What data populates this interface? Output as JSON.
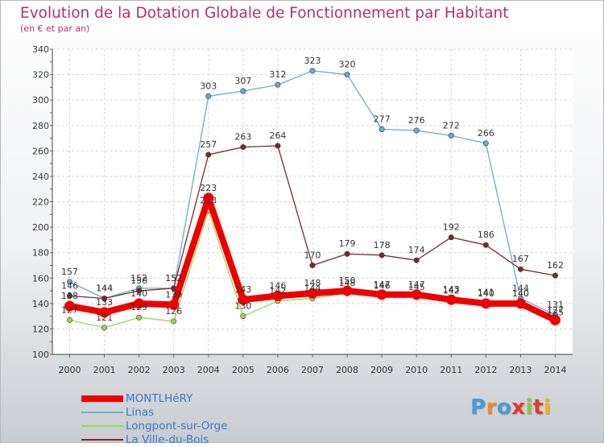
{
  "title": "Evolution de la Dotation Globale de Fonctionnement par Habitant",
  "subtitle": "(en € et par an)",
  "logo_text": "Proxiti",
  "chart_data": {
    "type": "line",
    "x": [
      "2000",
      "2001",
      "2002",
      "2003",
      "2004",
      "2005",
      "2006",
      "2007",
      "2008",
      "2009",
      "2010",
      "2011",
      "2012",
      "2013",
      "2014"
    ],
    "ylim": [
      100,
      340
    ],
    "yticks": [
      100,
      120,
      140,
      160,
      180,
      200,
      220,
      240,
      260,
      280,
      300,
      320,
      340
    ],
    "grid": true,
    "legend_position": "bottom-left",
    "series": [
      {
        "name": "MONTLHéRY",
        "color": "#ee0000",
        "values": [
          138,
          133,
          140,
          139,
          223,
          143,
          146,
          148,
          150,
          147,
          147,
          143,
          140,
          140,
          127
        ]
      },
      {
        "name": "Linas",
        "color": "#6aaad8",
        "values": [
          157,
          144,
          152,
          152,
          303,
          307,
          312,
          323,
          320,
          277,
          276,
          272,
          266,
          144,
          131
        ]
      },
      {
        "name": "Longpont-sur-Orge",
        "color": "#9ad65a",
        "values": [
          127,
          121,
          129,
          126,
          213,
          130,
          142,
          144,
          148,
          146,
          145,
          142,
          141,
          140,
          125
        ]
      },
      {
        "name": "La Ville-du-Bois",
        "color": "#7a2a2a",
        "values": [
          146,
          144,
          150,
          152,
          257,
          263,
          264,
          170,
          179,
          178,
          174,
          192,
          186,
          167,
          162
        ]
      }
    ]
  }
}
